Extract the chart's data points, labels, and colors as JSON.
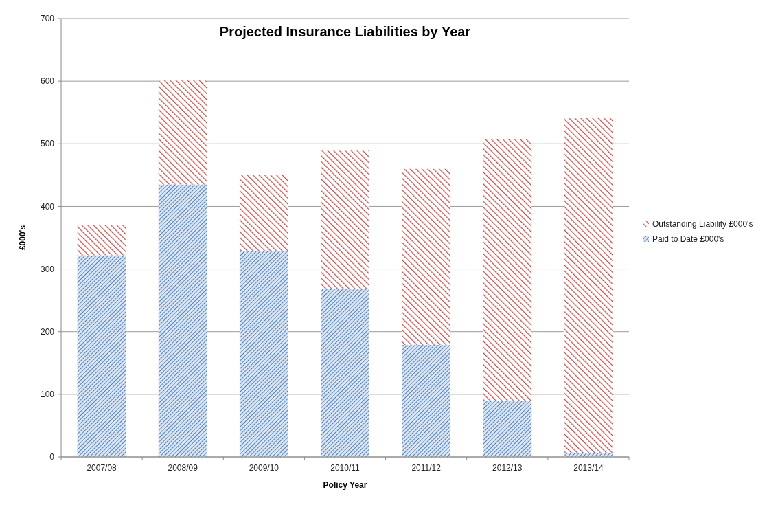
{
  "chart_data": {
    "type": "bar",
    "title": "Projected Insurance Liabilities by Year",
    "xlabel": "Policy Year",
    "ylabel": "£000's",
    "categories": [
      "2007/08",
      "2008/09",
      "2009/10",
      "2010/11",
      "2011/12",
      "2012/13",
      "2013/14"
    ],
    "stacked": true,
    "series": [
      {
        "name": "Paid to Date £000's",
        "color": "#4f81bd",
        "values": [
          322,
          435,
          329,
          268,
          179,
          90,
          6
        ]
      },
      {
        "name": "Outstanding Liability £000's",
        "color": "#c0504d",
        "values": [
          48,
          166,
          122,
          221,
          281,
          418,
          535
        ]
      }
    ],
    "ylim": [
      0,
      700
    ],
    "yticks": [
      0,
      100,
      200,
      300,
      400,
      500,
      600,
      700
    ],
    "grid": "y",
    "legend": "right"
  }
}
